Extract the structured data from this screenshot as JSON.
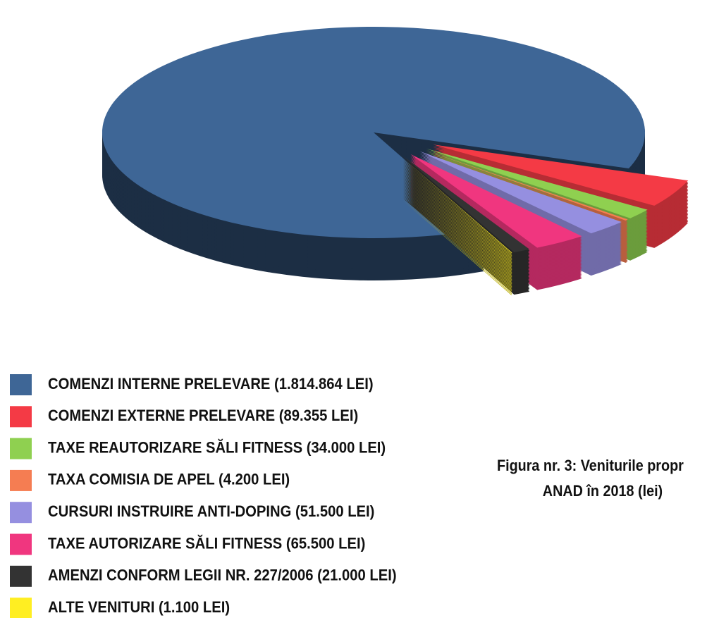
{
  "chart_data": {
    "type": "pie",
    "title": [
      "Figura nr. 3: Veniturile propr",
      "ANAD în 2018 (lei)"
    ],
    "categories": [
      "COMENZI INTERNE PRELEVARE (1.814.864 LEI)",
      "COMENZI EXTERNE PRELEVARE (89.355 LEI)",
      "TAXE REAUTORIZARE SĂLI FITNESS (34.000 LEI)",
      "TAXA COMISIA DE APEL (4.200 LEI)",
      "CURSURI INSTRUIRE ANTI-DOPING (51.500 LEI)",
      "TAXE AUTORIZARE SĂLI FITNESS (65.500 LEI)",
      "AMENZI CONFORM LEGII NR. 227/2006 (21.000 LEI)",
      "ALTE VENITURI (1.100 LEI)"
    ],
    "values": [
      1814864,
      89355,
      34000,
      4200,
      51500,
      65500,
      21000,
      1100
    ],
    "colors": [
      "#3e6696",
      "#f43a45",
      "#8fd050",
      "#f57d52",
      "#958fe0",
      "#f0367f",
      "#333333",
      "#ffee22"
    ],
    "legend": "bottom-left",
    "three_d": true,
    "exploded": true
  }
}
